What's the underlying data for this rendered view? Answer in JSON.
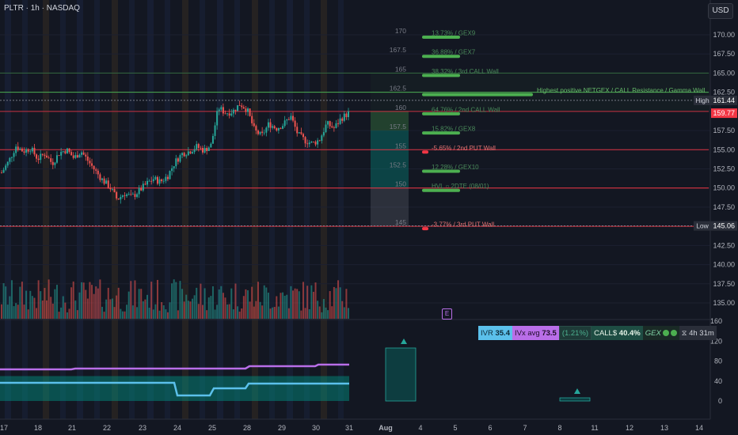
{
  "header": {
    "title": "PLTR · 1h · NASDAQ",
    "currency": "USD"
  },
  "price_axis": {
    "ticks": [
      "170.00",
      "167.50",
      "165.00",
      "162.50",
      "160.00",
      "157.50",
      "155.00",
      "152.50",
      "150.00",
      "147.50",
      "145.00",
      "142.50",
      "140.00",
      "137.50",
      "135.00"
    ],
    "high_label": "High",
    "high_value": "161.44",
    "low_label": "Low",
    "low_value": "145.06",
    "current_value": "159.77"
  },
  "osc_axis": {
    "ticks": [
      "160",
      "120",
      "80",
      "40",
      "0"
    ]
  },
  "x_axis": {
    "ticks": [
      "17",
      "18",
      "21",
      "22",
      "23",
      "24",
      "25",
      "28",
      "29",
      "30",
      "31",
      "Aug",
      "4",
      "5",
      "6",
      "7",
      "8",
      "11",
      "12",
      "13",
      "14"
    ]
  },
  "levels": [
    {
      "strike": "170",
      "label": "13.73% / GEX9",
      "color": "#4caf50"
    },
    {
      "strike": "167.5",
      "label": "36.88% / GEX7",
      "color": "#4caf50"
    },
    {
      "strike": "165",
      "label": "38.32% / 3rd CALL Wall",
      "color": "#4caf50"
    },
    {
      "strike": "162.5",
      "label": "Highest positive NETGEX / CALL Resistance / Gamma Wall",
      "color": "#4caf50"
    },
    {
      "strike": "160",
      "label": "64.76% / 2nd CALL Wall",
      "color": "#4caf50"
    },
    {
      "strike": "157.5",
      "label": "15.82% / GEX8",
      "color": "#4caf50"
    },
    {
      "strike": "155",
      "label": "-5.65% / 2nd PUT Wall",
      "color": "#f23645"
    },
    {
      "strike": "152.5",
      "label": "12.28% / GEX10",
      "color": "#4caf50"
    },
    {
      "strike": "150",
      "label": "HVL ○ 2DTE (08/01)",
      "color": "#4caf50"
    },
    {
      "strike": "145",
      "label": "-3.77% / 3rd PUT Wall",
      "color": "#f23645"
    }
  ],
  "status": {
    "ivr_label": "IVR",
    "ivr_value": "35.4",
    "ivx_label": "IVx avg",
    "ivx_value": "73.5",
    "change": "(1.21%)",
    "calls_label": "CALL$",
    "calls_value": "40.4%",
    "gex_label": "GEX",
    "time_label": "4h 31m"
  },
  "earnings_badge": "E",
  "colors": {
    "bg": "#131722",
    "up": "#26a69a",
    "down": "#ef5350",
    "call": "#4caf50",
    "put": "#f23645",
    "ivx": "#b96ee8",
    "ivr": "#5bc0eb"
  },
  "chart_data": {
    "type": "candlestick",
    "symbol": "PLTR",
    "interval": "1h",
    "exchange": "NASDAQ",
    "ylim": [
      133,
      172
    ],
    "x_ticks": [
      "17",
      "18",
      "21",
      "22",
      "23",
      "24",
      "25",
      "28",
      "29",
      "30",
      "31",
      "Aug",
      "4",
      "5",
      "6",
      "7",
      "8",
      "11",
      "12",
      "13",
      "14"
    ],
    "close_path": [
      152,
      153.5,
      155.5,
      154.8,
      155.2,
      153.8,
      154.5,
      153.2,
      154.6,
      155.0,
      153.9,
      154.8,
      153.5,
      152.2,
      151.0,
      150.1,
      148.5,
      149.3,
      148.8,
      149.6,
      150.5,
      151.2,
      150.8,
      151.6,
      153.4,
      154.5,
      154.8,
      155.4,
      154.9,
      155.6,
      160.5,
      159.8,
      160.0,
      161.0,
      160.2,
      157.5,
      156.8,
      158.4,
      157.8,
      158.3,
      159.4,
      157.0,
      156.2,
      155.8,
      156.3,
      158.4,
      157.8,
      159.1,
      159.77
    ],
    "hvl": 150,
    "high": 161.44,
    "low": 145.06
  }
}
